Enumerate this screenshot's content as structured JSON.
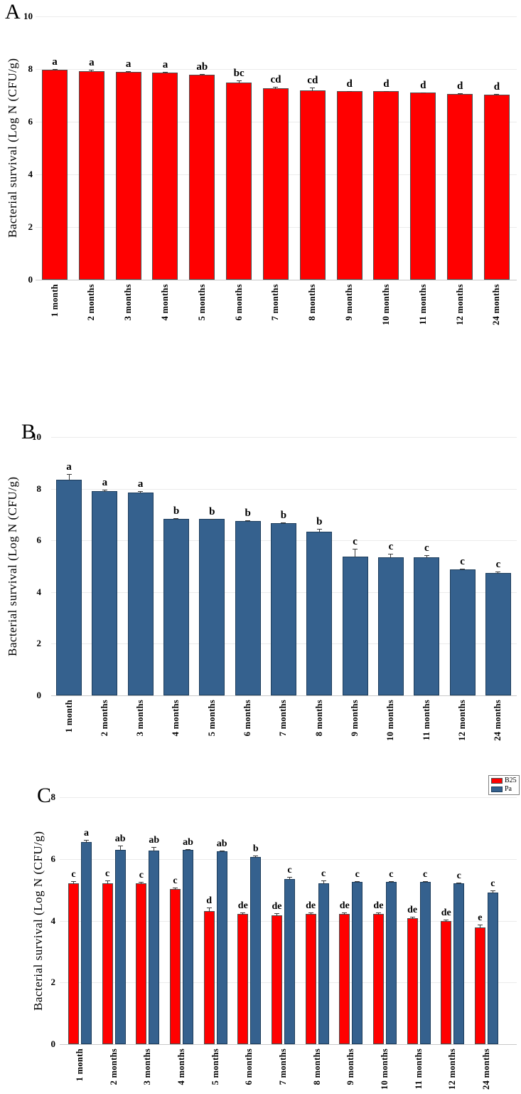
{
  "figure": {
    "background": "#ffffff"
  },
  "colors": {
    "b25": "#ff0000",
    "b25_border": "#4d4d4d",
    "pa": "#35618e",
    "pa_border": "#1d3d5c",
    "gridline": "#ebebeb",
    "baseline": "#c9c9c9",
    "error_bar": "#3a3a3a",
    "text": "#000000"
  },
  "legend": {
    "items": [
      {
        "label": "B25",
        "color": "#ff0000",
        "border": "#4d4d4d"
      },
      {
        "label": "Pa",
        "color": "#35618e",
        "border": "#1d3d5c"
      }
    ]
  },
  "chart_data": [
    {
      "panel": "A",
      "type": "bar",
      "title": "",
      "ylabel": "Bacterial survival (Log N (CFU/g)",
      "xlabel": "",
      "ymax": 10,
      "ylim": [
        0,
        10
      ],
      "yticks": [
        10,
        8,
        6,
        4,
        2,
        0
      ],
      "grid": "horizontal",
      "legend_position": "none",
      "categories": [
        "1 month",
        "2 months",
        "3 months",
        "4 months",
        "5 months",
        "6 months",
        "7 months",
        "8 months",
        "9 months",
        "10 months",
        "11 months",
        "12 months",
        "24 months"
      ],
      "series": [
        {
          "name": "B25",
          "color": "#ff0000",
          "border": "#4d4d4d",
          "values": [
            7.98,
            7.93,
            7.9,
            7.87,
            7.78,
            7.5,
            7.28,
            7.2,
            7.15,
            7.15,
            7.1,
            7.06,
            7.04
          ],
          "errors": [
            0.05,
            0.08,
            0.05,
            0.05,
            0.07,
            0.1,
            0.06,
            0.13,
            0.05,
            0.04,
            0.04,
            0.04,
            0.04
          ],
          "letters": [
            "a",
            "a",
            "a",
            "a",
            "ab",
            "bc",
            "cd",
            "cd",
            "d",
            "d",
            "d",
            "d",
            "d"
          ]
        }
      ]
    },
    {
      "panel": "B",
      "type": "bar",
      "title": "",
      "ylabel": "Bacterial survival (Log N (CFU/g)",
      "xlabel": "",
      "ymax": 10,
      "ylim": [
        0,
        10
      ],
      "yticks": [
        10,
        8,
        6,
        4,
        2,
        0
      ],
      "grid": "horizontal",
      "legend_position": "none",
      "categories": [
        "1 month",
        "2 months",
        "3 months",
        "4 months",
        "5 months",
        "6 months",
        "7 months",
        "8 months",
        "9 months",
        "10 months",
        "11 months",
        "12 months",
        "24 months"
      ],
      "series": [
        {
          "name": "Pa",
          "color": "#35618e",
          "border": "#1d3d5c",
          "values": [
            8.35,
            7.9,
            7.85,
            6.82,
            6.82,
            6.75,
            6.67,
            6.33,
            5.38,
            5.35,
            5.35,
            4.87,
            4.75
          ],
          "errors": [
            0.25,
            0.08,
            0.08,
            0.06,
            0.05,
            0.05,
            0.06,
            0.15,
            0.33,
            0.15,
            0.1,
            0.05,
            0.07
          ],
          "letters": [
            "a",
            "a",
            "a",
            "b",
            "b",
            "b",
            "b",
            "b",
            "c",
            "c",
            "c",
            "c",
            "c"
          ]
        }
      ]
    },
    {
      "panel": "C",
      "type": "bar",
      "title": "",
      "ylabel": "Bacterial survival (Log N (CFU/g)",
      "xlabel": "",
      "ymax": 8,
      "ylim": [
        0,
        8
      ],
      "yticks": [
        8,
        6,
        4,
        2,
        0
      ],
      "grid": "horizontal",
      "legend_position": "top-right",
      "categories": [
        "1 month",
        "2 months",
        "3 months",
        "4 months",
        "5 months",
        "6 months",
        "7 months",
        "8 months",
        "9 months",
        "10 months",
        "11 months",
        "12 months",
        "24 months"
      ],
      "series": [
        {
          "name": "B25",
          "color": "#ff0000",
          "border": "#4d4d4d",
          "values": [
            5.2,
            5.2,
            5.2,
            5.03,
            4.32,
            4.22,
            4.18,
            4.22,
            4.22,
            4.22,
            4.08,
            4.0,
            3.78
          ],
          "errors": [
            0.1,
            0.13,
            0.08,
            0.07,
            0.12,
            0.08,
            0.08,
            0.08,
            0.07,
            0.07,
            0.07,
            0.05,
            0.12
          ],
          "letters": [
            "c",
            "c",
            "c",
            "c",
            "d",
            "de",
            "de",
            "de",
            "de",
            "de",
            "de",
            "de",
            "e"
          ]
        },
        {
          "name": "Pa",
          "color": "#35618e",
          "border": "#1d3d5c",
          "values": [
            6.55,
            6.3,
            6.28,
            6.3,
            6.25,
            6.06,
            5.35,
            5.22,
            5.25,
            5.25,
            5.25,
            5.2,
            4.92
          ],
          "errors": [
            0.1,
            0.15,
            0.12,
            0.05,
            0.05,
            0.08,
            0.08,
            0.1,
            0.06,
            0.05,
            0.05,
            0.06,
            0.08
          ],
          "letters": [
            "a",
            "ab",
            "ab",
            "ab",
            "ab",
            "b",
            "c",
            "c",
            "c",
            "c",
            "c",
            "c",
            "c"
          ]
        }
      ]
    }
  ]
}
